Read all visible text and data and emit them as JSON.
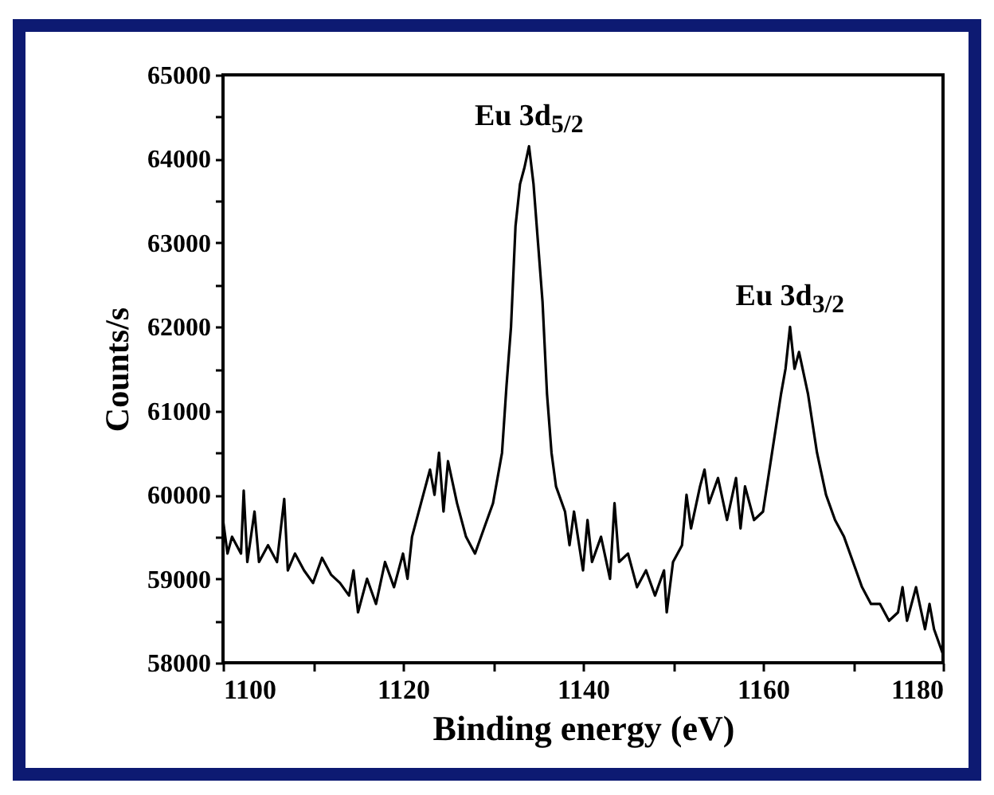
{
  "chart_data": {
    "type": "line",
    "xlabel": "Binding energy (eV)",
    "ylabel": "Counts/s",
    "xlim": [
      1100,
      1180
    ],
    "ylim": [
      58000,
      65000
    ],
    "xticks": [
      1100,
      {
        "value": 1110,
        "label": null
      },
      1120,
      {
        "value": 1130,
        "label": null
      },
      1140,
      {
        "value": 1150,
        "label": null
      },
      1160,
      {
        "value": 1170,
        "label": null
      },
      1180
    ],
    "yticks": [
      58000,
      {
        "value": 58500,
        "label": null
      },
      59000,
      {
        "value": 59500,
        "label": null
      },
      60000,
      {
        "value": 60500,
        "label": null
      },
      61000,
      {
        "value": 61500,
        "label": null
      },
      62000,
      {
        "value": 62500,
        "label": null
      },
      63000,
      {
        "value": 63500,
        "label": null
      },
      64000,
      {
        "value": 64500,
        "label": null
      },
      65000
    ],
    "annotations": [
      {
        "text": "Eu 3d$_{5/2}$",
        "x": 1134,
        "y": 64150
      },
      {
        "text": "Eu 3d$_{3/2}$",
        "x": 1163,
        "y": 62000
      }
    ],
    "x": [
      1100,
      1100.5,
      1101,
      1102,
      1102.3,
      1102.7,
      1103.5,
      1104,
      1105,
      1106,
      1106.8,
      1107.2,
      1108,
      1109,
      1110,
      1111,
      1112,
      1113,
      1114,
      1114.5,
      1115,
      1116,
      1117,
      1118,
      1119,
      1120,
      1120.5,
      1121,
      1122,
      1123,
      1123.5,
      1124,
      1124.5,
      1125,
      1126,
      1127,
      1128,
      1129,
      1130,
      1131,
      1131.5,
      1132,
      1132.5,
      1133,
      1133.5,
      1134,
      1134.5,
      1135,
      1135.5,
      1136,
      1136.5,
      1137,
      1138,
      1138.5,
      1139,
      1140,
      1140.5,
      1141,
      1142,
      1143,
      1143.5,
      1144,
      1145,
      1146,
      1147,
      1148,
      1149,
      1149.3,
      1150,
      1151,
      1151.5,
      1152,
      1153,
      1153.5,
      1154,
      1155,
      1156,
      1157,
      1157.5,
      1158,
      1159,
      1160,
      1161,
      1162,
      1162.5,
      1163,
      1163.5,
      1164,
      1165,
      1166,
      1167,
      1168,
      1169,
      1170,
      1171,
      1172,
      1173,
      1174,
      1175,
      1175.5,
      1176,
      1177,
      1178,
      1178.5,
      1179,
      1180
    ],
    "series": [
      {
        "color": "#000000",
        "values": [
          59700,
          59300,
          59500,
          59300,
          60050,
          59200,
          59800,
          59200,
          59400,
          59200,
          59950,
          59100,
          59300,
          59100,
          58950,
          59250,
          59050,
          58950,
          58800,
          59100,
          58600,
          59000,
          58700,
          59200,
          58900,
          59300,
          59000,
          59500,
          59900,
          60300,
          60000,
          60500,
          59800,
          60400,
          59900,
          59500,
          59300,
          59600,
          59900,
          60500,
          61300,
          62000,
          63200,
          63700,
          63900,
          64150,
          63700,
          63000,
          62300,
          61200,
          60500,
          60100,
          59800,
          59400,
          59800,
          59100,
          59700,
          59200,
          59500,
          59000,
          59900,
          59200,
          59300,
          58900,
          59100,
          58800,
          59100,
          58600,
          59200,
          59400,
          60000,
          59600,
          60100,
          60300,
          59900,
          60200,
          59700,
          60200,
          59600,
          60100,
          59700,
          59800,
          60500,
          61200,
          61500,
          62000,
          61500,
          61700,
          61200,
          60500,
          60000,
          59700,
          59500,
          59200,
          58900,
          58700,
          58700,
          58500,
          58600,
          58900,
          58500,
          58900,
          58400,
          58700,
          58400,
          58100
        ]
      }
    ]
  }
}
